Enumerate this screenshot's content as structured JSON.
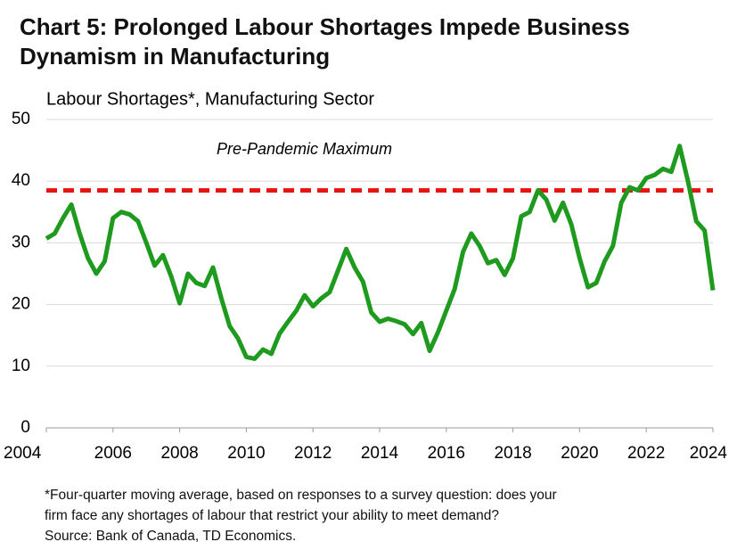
{
  "chart_data": {
    "type": "line",
    "title": "Chart 5: Prolonged Labour Shortages Impede Business Dynamism in Manufacturing",
    "subtitle": "Labour Shortages*, Manufacturing Sector",
    "notes": [
      "*Four-quarter moving average, based on responses to a survey question: does your",
      "firm face any shortages of labour that restrict your ability to meet demand?",
      "Source: Bank of Canada, TD Economics."
    ],
    "x": [
      2004,
      2004.25,
      2004.5,
      2004.75,
      2005,
      2005.25,
      2005.5,
      2005.75,
      2006,
      2006.25,
      2006.5,
      2006.75,
      2007,
      2007.25,
      2007.5,
      2007.75,
      2008,
      2008.25,
      2008.5,
      2008.75,
      2009,
      2009.25,
      2009.5,
      2009.75,
      2010,
      2010.25,
      2010.5,
      2010.75,
      2011,
      2011.25,
      2011.5,
      2011.75,
      2012,
      2012.25,
      2012.5,
      2012.75,
      2013,
      2013.25,
      2013.5,
      2013.75,
      2014,
      2014.25,
      2014.5,
      2014.75,
      2015,
      2015.25,
      2015.5,
      2015.75,
      2016,
      2016.25,
      2016.5,
      2016.75,
      2017,
      2017.25,
      2017.5,
      2017.75,
      2018,
      2018.25,
      2018.5,
      2018.75,
      2019,
      2019.25,
      2019.5,
      2019.75,
      2020,
      2020.25,
      2020.5,
      2020.75,
      2021,
      2021.25,
      2021.5,
      2021.75,
      2022,
      2022.25,
      2022.5,
      2022.75,
      2023,
      2023.25,
      2023.5,
      2023.75,
      2024
    ],
    "series": [
      {
        "name": "Labour Shortages",
        "color": "#1e9a1e",
        "values": [
          30.7,
          31.5,
          34,
          36.2,
          31.5,
          27.5,
          25,
          27,
          34,
          35,
          34.6,
          33.5,
          30,
          26.3,
          28,
          24.5,
          20.2,
          25,
          23.5,
          23,
          26,
          21,
          16.5,
          14.5,
          11.5,
          11.2,
          12.7,
          12,
          15.3,
          17.2,
          19,
          21.5,
          19.7,
          21,
          22,
          25.5,
          29,
          26,
          23.7,
          18.7,
          17.2,
          17.7,
          17.3,
          16.8,
          15.2,
          17,
          12.5,
          15.5,
          19,
          22.5,
          28.5,
          31.5,
          29.5,
          26.7,
          27.2,
          24.8,
          27.5,
          34.3,
          35,
          38.5,
          37,
          33.6,
          36.5,
          33,
          27.5,
          22.8,
          23.5,
          27,
          29.5,
          36.5,
          39,
          38.5,
          40.5,
          41,
          42,
          41.5,
          45.7,
          40,
          33.5,
          32,
          22.3
        ]
      }
    ],
    "reference_line": {
      "label": "Pre-Pandemic Maximum",
      "value": 38.5,
      "color": "#e8140f"
    },
    "xlim": [
      2004,
      2024
    ],
    "xticks": [
      2004,
      2006,
      2008,
      2010,
      2012,
      2014,
      2016,
      2018,
      2020,
      2022,
      2024
    ],
    "ylim": [
      0,
      50
    ],
    "yticks": [
      0,
      10,
      20,
      30,
      40,
      50
    ],
    "grid": true
  }
}
